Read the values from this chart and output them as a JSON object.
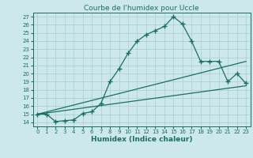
{
  "title": "Courbe de l'humidex pour Uccle",
  "xlabel": "Humidex (Indice chaleur)",
  "xlim": [
    -0.5,
    23.5
  ],
  "ylim": [
    13.5,
    27.5
  ],
  "yticks": [
    14,
    15,
    16,
    17,
    18,
    19,
    20,
    21,
    22,
    23,
    24,
    25,
    26,
    27
  ],
  "xticks": [
    0,
    1,
    2,
    3,
    4,
    5,
    6,
    7,
    8,
    9,
    10,
    11,
    12,
    13,
    14,
    15,
    16,
    17,
    18,
    19,
    20,
    21,
    22,
    23
  ],
  "bg_color": "#cde8ec",
  "grid_color": "#a8cdd2",
  "line_color": "#1a6e64",
  "line1_x": [
    0,
    1,
    2,
    3,
    4,
    5,
    6,
    7,
    8,
    9,
    10,
    11,
    12,
    13,
    14,
    15,
    16,
    17,
    18,
    19,
    20,
    21,
    22,
    23
  ],
  "line1_y": [
    15.0,
    15.0,
    14.1,
    14.2,
    14.3,
    15.1,
    15.3,
    16.3,
    19.0,
    20.6,
    22.5,
    24.0,
    24.8,
    25.3,
    25.8,
    27.0,
    26.1,
    24.0,
    21.5,
    21.5,
    21.5,
    19.0,
    20.0,
    18.8
  ],
  "line2_x": [
    0,
    23
  ],
  "line2_y": [
    15.0,
    21.5
  ],
  "line3_x": [
    0,
    23
  ],
  "line3_y": [
    15.0,
    18.5
  ],
  "marker": "+",
  "markersize": 4,
  "linewidth": 0.9,
  "tick_fontsize": 5,
  "xlabel_fontsize": 6.5,
  "title_fontsize": 6.5
}
